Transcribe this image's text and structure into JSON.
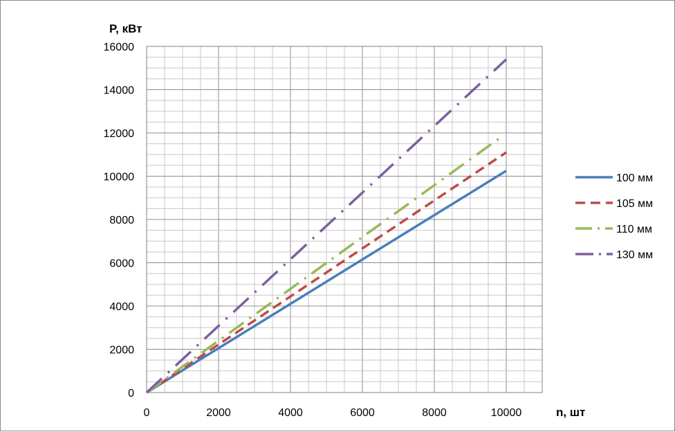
{
  "chart_data": {
    "type": "line",
    "title": "",
    "ylabel": "P, кВт",
    "xlabel": "n, шт",
    "xlim": [
      0,
      11000
    ],
    "ylim": [
      0,
      16000
    ],
    "x_ticks": [
      0,
      2000,
      4000,
      6000,
      8000,
      10000
    ],
    "y_ticks": [
      0,
      2000,
      4000,
      6000,
      8000,
      10000,
      12000,
      14000,
      16000
    ],
    "x_tick_labels": [
      "0",
      "2000",
      "4000",
      "6000",
      "8000",
      "10000"
    ],
    "y_tick_labels": [
      "0",
      "2000",
      "4000",
      "6000",
      "8000",
      "10000",
      "12000",
      "14000",
      "16000"
    ],
    "grid": true,
    "legend_position": "right",
    "series": [
      {
        "name": "100 мм",
        "color": "#4a7ebb",
        "style": "solid",
        "x": [
          0,
          10000
        ],
        "y": [
          0,
          10250
        ]
      },
      {
        "name": "105 мм",
        "color": "#be4b48",
        "style": "dash",
        "x": [
          0,
          10000
        ],
        "y": [
          0,
          11100
        ]
      },
      {
        "name": "110 мм",
        "color": "#98b954",
        "style": "dash-dot",
        "x": [
          0,
          9850
        ],
        "y": [
          0,
          11800
        ]
      },
      {
        "name": "130 мм",
        "color": "#7d5fa0",
        "style": "long-dash-dot",
        "x": [
          0,
          10000
        ],
        "y": [
          0,
          15400
        ]
      }
    ]
  }
}
